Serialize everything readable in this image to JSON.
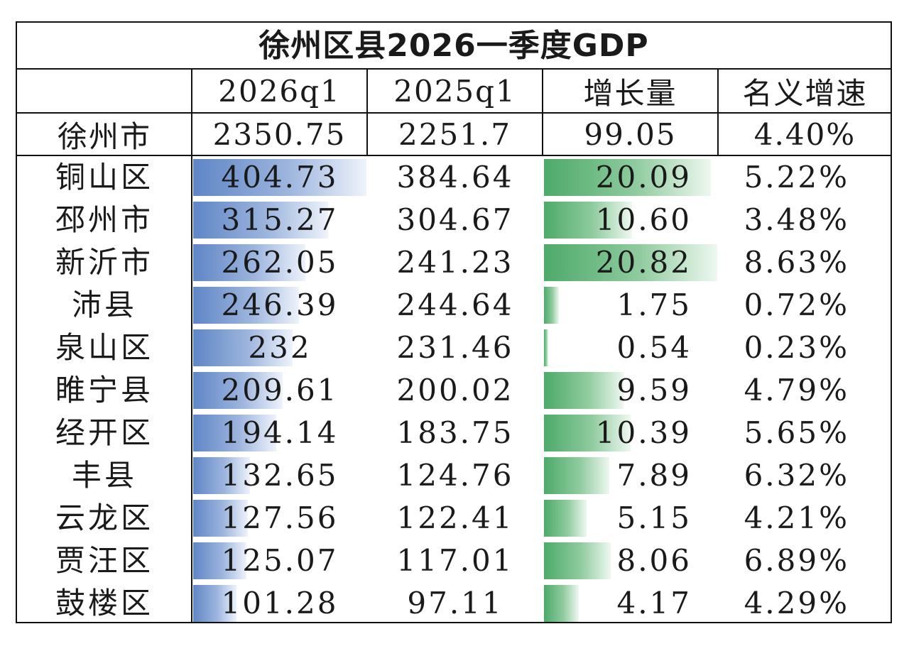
{
  "chart_data": {
    "type": "table",
    "title": "徐州区县2026一季度GDP",
    "columns": [
      "",
      "2026q1",
      "2025q1",
      "增长量",
      "名义增速"
    ],
    "total": {
      "name": "徐州市",
      "q2026": "2350.75",
      "q2025": "2251.7",
      "growth": "99.05",
      "rate": "4.40%"
    },
    "rows": [
      {
        "name": "铜山区",
        "q2026": "404.73",
        "q2025": "384.64",
        "growth": "20.09",
        "rate": "5.22%",
        "q2026_value": 404.73,
        "growth_value": 20.09
      },
      {
        "name": "邳州市",
        "q2026": "315.27",
        "q2025": "304.67",
        "growth": "10.60",
        "rate": "3.48%",
        "q2026_value": 315.27,
        "growth_value": 10.6
      },
      {
        "name": "新沂市",
        "q2026": "262.05",
        "q2025": "241.23",
        "growth": "20.82",
        "rate": "8.63%",
        "q2026_value": 262.05,
        "growth_value": 20.82
      },
      {
        "name": "沛县",
        "q2026": "246.39",
        "q2025": "244.64",
        "growth": "1.75",
        "rate": "0.72%",
        "q2026_value": 246.39,
        "growth_value": 1.75
      },
      {
        "name": "泉山区",
        "q2026": "232",
        "q2025": "231.46",
        "growth": "0.54",
        "rate": "0.23%",
        "q2026_value": 232,
        "growth_value": 0.54
      },
      {
        "name": "睢宁县",
        "q2026": "209.61",
        "q2025": "200.02",
        "growth": "9.59",
        "rate": "4.79%",
        "q2026_value": 209.61,
        "growth_value": 9.59
      },
      {
        "name": "经开区",
        "q2026": "194.14",
        "q2025": "183.75",
        "growth": "10.39",
        "rate": "5.65%",
        "q2026_value": 194.14,
        "growth_value": 10.39
      },
      {
        "name": "丰县",
        "q2026": "132.65",
        "q2025": "124.76",
        "growth": "7.89",
        "rate": "6.32%",
        "q2026_value": 132.65,
        "growth_value": 7.89
      },
      {
        "name": "云龙区",
        "q2026": "127.56",
        "q2025": "122.41",
        "growth": "5.15",
        "rate": "4.21%",
        "q2026_value": 127.56,
        "growth_value": 5.15
      },
      {
        "name": "贾汪区",
        "q2026": "125.07",
        "q2025": "117.01",
        "growth": "8.06",
        "rate": "6.89%",
        "q2026_value": 125.07,
        "growth_value": 8.06
      },
      {
        "name": "鼓楼区",
        "q2026": "101.28",
        "q2025": "97.11",
        "growth": "4.17",
        "rate": "4.29%",
        "q2026_value": 101.28,
        "growth_value": 4.17
      }
    ],
    "colors": {
      "q2026_bar": "#5f86c6",
      "growth_bar": "#4daa6a"
    }
  }
}
